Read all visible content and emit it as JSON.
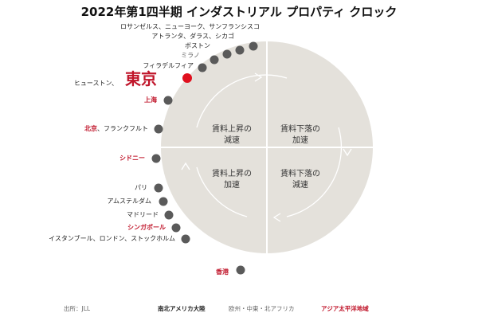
{
  "title": "2022年第1四半期 インダストリアル プロパティ クロック",
  "quadrants": {
    "top_left": [
      "賃料上昇の",
      "減速"
    ],
    "top_right": [
      "賃料下落の",
      "加速"
    ],
    "bottom_left": [
      "賃料上昇の",
      "加速"
    ],
    "bottom_right": [
      "賃料下落の",
      "減速"
    ]
  },
  "labels": {
    "la_sf": "ロサンゼルス、ニューヨーク、サンフランシスコ",
    "atl": "アトランタ、ダラス、シカゴ",
    "boston": "ボストン",
    "milan": "ミラノ",
    "phil": "フィラデルフィア",
    "houston": "ヒューストン、",
    "tokyo": "東京",
    "shanghai": "上海",
    "beijing": "北京",
    "frankfurt": "、フランクフルト",
    "sydney": "シドニー",
    "paris": "パリ",
    "amsterdam": "アムステルダム",
    "madrid": "マドリード",
    "singapore": "シンガポール",
    "istanbul": "イスタンブール、ロンドン、ストックホルム",
    "hongkong": "香港"
  },
  "footer": {
    "source": "出所：JLL",
    "americas": "南北アメリカ大陸",
    "emea": "欧州・中東・北アフリカ",
    "apac": "アジア太平洋地域"
  },
  "colors": {
    "circle": "#e4e1db",
    "dot_gray": "#5a5a5a",
    "highlight_red": "#e0101e",
    "apac_red": "#c0152a"
  }
}
